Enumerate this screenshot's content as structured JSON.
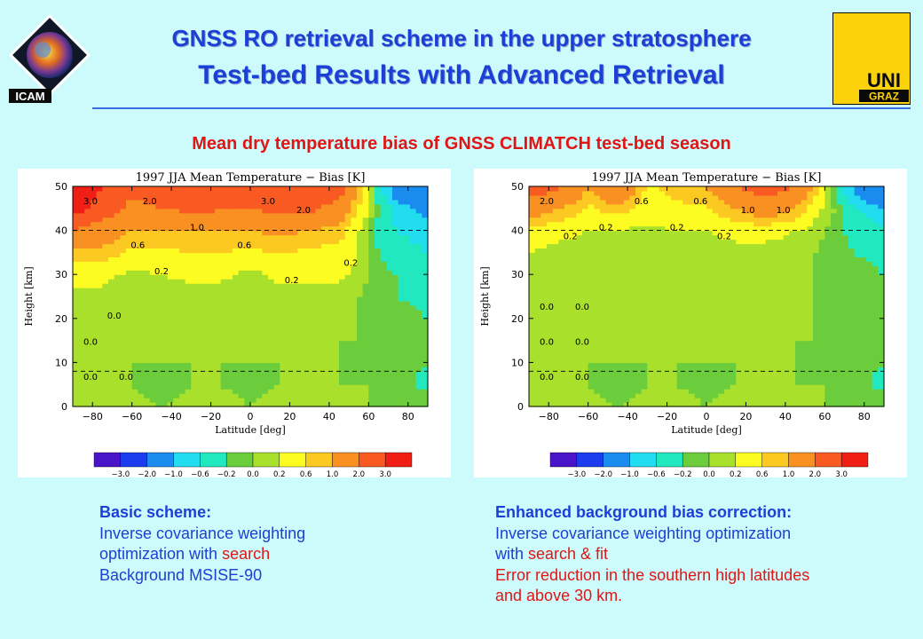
{
  "header": {
    "title_line1": "GNSS RO retrieval scheme in the upper stratosphere",
    "title_line2": "Test-bed Results with Advanced Retrieval",
    "logo_left_text": "ICAM",
    "logo_right_text_top": "UNI",
    "logo_right_text_bottom": "GRAZ"
  },
  "subtitle": "Mean dry temperature bias of GNSS CLIMATCH test-bed season",
  "chart_data": [
    {
      "type": "heatmap",
      "title": "1997 JJA Mean Temperature − Bias [K]",
      "xlabel": "Latitude [deg]",
      "ylabel": "Height [km]",
      "xlim": [
        -90,
        90
      ],
      "ylim": [
        0,
        50
      ],
      "xticks": [
        "−80",
        "−60",
        "−40",
        "−20",
        "0",
        "20",
        "40",
        "60",
        "80"
      ],
      "yticks": [
        "0",
        "10",
        "20",
        "30",
        "40",
        "50"
      ],
      "dashed_lines_km": [
        8,
        40
      ],
      "levels": [
        "−3.0",
        "−2.0",
        "−1.0",
        "−0.6",
        "−0.2",
        "0.0",
        "0.2",
        "0.6",
        "1.0",
        "2.0",
        "3.0"
      ],
      "colors": [
        "#4a14c8",
        "#1c3cf0",
        "#1a8cf0",
        "#22dcf0",
        "#22e8c0",
        "#6ccd3c",
        "#a8e02c",
        "#fcfc22",
        "#fcc822",
        "#f89022",
        "#f85a22",
        "#f01e14"
      ],
      "contour_labels": [
        "3.0",
        "2.0",
        "1.0",
        "0.6",
        "0.2",
        "0.0",
        "2.0",
        "3.0",
        "0.6",
        "0.2",
        "0.0",
        "0.0",
        "0.0",
        "0.2"
      ],
      "x": [
        -90,
        -75,
        -60,
        -45,
        -30,
        -15,
        0,
        15,
        30,
        45,
        55,
        65,
        75,
        90
      ],
      "y": [
        0,
        5,
        10,
        15,
        20,
        25,
        30,
        35,
        40,
        45,
        50
      ],
      "z": [
        [
          0.1,
          0.1,
          0.1,
          0.0,
          0.1,
          0.1,
          0.0,
          0.1,
          0.1,
          0.1,
          0.1,
          -0.1,
          0.0,
          0.0
        ],
        [
          0.0,
          0.0,
          0.0,
          -0.2,
          0.0,
          0.0,
          -0.1,
          0.0,
          0.0,
          0.0,
          0.0,
          0.0,
          -0.1,
          -0.3
        ],
        [
          0.0,
          0.0,
          0.0,
          0.0,
          0.0,
          0.0,
          0.0,
          0.0,
          0.0,
          0.0,
          -0.1,
          0.0,
          -0.1,
          -0.2
        ],
        [
          0.0,
          0.0,
          0.0,
          0.0,
          0.0,
          0.0,
          0.0,
          0.0,
          0.0,
          0.0,
          0.0,
          -0.1,
          -0.1,
          -0.2
        ],
        [
          0.0,
          0.0,
          0.0,
          0.0,
          0.0,
          0.0,
          0.0,
          0.0,
          0.0,
          0.0,
          0.0,
          0.0,
          -0.1,
          -0.2
        ],
        [
          0.1,
          0.1,
          0.0,
          0.1,
          0.0,
          0.0,
          0.0,
          0.1,
          0.0,
          0.0,
          0.0,
          -0.1,
          -0.2,
          -0.3
        ],
        [
          0.3,
          0.3,
          0.1,
          0.2,
          0.3,
          0.3,
          0.1,
          0.3,
          0.3,
          0.3,
          0.1,
          -0.1,
          -0.2,
          -0.3
        ],
        [
          0.8,
          0.8,
          0.5,
          0.5,
          0.6,
          0.6,
          0.5,
          0.6,
          0.5,
          0.4,
          0.2,
          -0.2,
          -0.4,
          -0.6
        ],
        [
          1.9,
          1.5,
          1.0,
          0.9,
          1.0,
          1.0,
          1.0,
          1.1,
          1.0,
          0.8,
          0.2,
          -0.3,
          -0.6,
          -0.8
        ],
        [
          3.5,
          2.5,
          1.8,
          2.0,
          2.2,
          2.1,
          2.0,
          2.3,
          2.2,
          1.5,
          0.6,
          -0.2,
          -0.8,
          -1.2
        ],
        [
          3.8,
          3.0,
          2.2,
          2.4,
          2.6,
          2.5,
          2.2,
          2.6,
          3.1,
          2.5,
          1.0,
          -0.5,
          -1.5,
          -2.0
        ]
      ]
    },
    {
      "type": "heatmap",
      "title": "1997 JJA Mean Temperature − Bias [K]",
      "xlabel": "Latitude [deg]",
      "ylabel": "Height [km]",
      "xlim": [
        -90,
        90
      ],
      "ylim": [
        0,
        50
      ],
      "xticks": [
        "−80",
        "−60",
        "−40",
        "−20",
        "0",
        "20",
        "40",
        "60",
        "80"
      ],
      "yticks": [
        "0",
        "10",
        "20",
        "30",
        "40",
        "50"
      ],
      "dashed_lines_km": [
        8,
        40
      ],
      "levels": [
        "−3.0",
        "−2.0",
        "−1.0",
        "−0.6",
        "−0.2",
        "0.0",
        "0.2",
        "0.6",
        "1.0",
        "2.0",
        "3.0"
      ],
      "colors": [
        "#4a14c8",
        "#1c3cf0",
        "#1a8cf0",
        "#22dcf0",
        "#22e8c0",
        "#6ccd3c",
        "#a8e02c",
        "#fcfc22",
        "#fcc822",
        "#f89022",
        "#f85a22",
        "#f01e14"
      ],
      "contour_labels": [
        "1.0",
        "0.6",
        "0.2",
        "0.2",
        "2.0",
        "1.0",
        "0.6",
        "0.2",
        "0.0",
        "0.0",
        "0.0",
        "0.2",
        "0.0",
        "0.0",
        "0.0"
      ],
      "x": [
        -90,
        -75,
        -60,
        -45,
        -30,
        -15,
        0,
        15,
        30,
        45,
        55,
        65,
        75,
        90
      ],
      "y": [
        0,
        5,
        10,
        15,
        20,
        25,
        30,
        35,
        40,
        45,
        50
      ],
      "z": [
        [
          0.1,
          0.1,
          0.1,
          0.0,
          0.1,
          0.1,
          0.0,
          0.1,
          0.1,
          0.1,
          0.1,
          -0.1,
          0.0,
          0.0
        ],
        [
          0.0,
          0.0,
          0.0,
          -0.2,
          0.0,
          0.0,
          -0.1,
          0.0,
          0.0,
          0.0,
          0.0,
          0.0,
          -0.1,
          -0.3
        ],
        [
          0.0,
          0.0,
          0.0,
          0.0,
          0.0,
          0.0,
          0.0,
          0.0,
          0.0,
          0.0,
          -0.1,
          0.0,
          -0.1,
          -0.2
        ],
        [
          0.0,
          0.0,
          0.0,
          0.0,
          0.0,
          0.0,
          0.0,
          0.0,
          0.0,
          0.0,
          0.0,
          -0.1,
          -0.1,
          -0.2
        ],
        [
          0.0,
          0.0,
          0.0,
          0.0,
          0.0,
          0.0,
          0.0,
          0.0,
          0.0,
          0.0,
          0.0,
          0.0,
          -0.1,
          -0.2
        ],
        [
          0.0,
          0.0,
          0.0,
          0.0,
          0.0,
          0.0,
          0.0,
          0.0,
          0.0,
          0.0,
          0.0,
          -0.1,
          -0.1,
          -0.2
        ],
        [
          0.1,
          0.1,
          0.0,
          0.1,
          0.1,
          0.1,
          0.0,
          0.1,
          0.1,
          0.1,
          0.0,
          -0.1,
          -0.1,
          -0.2
        ],
        [
          0.2,
          0.1,
          0.1,
          0.1,
          0.1,
          0.1,
          0.1,
          0.1,
          0.1,
          0.1,
          0.0,
          -0.1,
          -0.2,
          -0.3
        ],
        [
          0.5,
          0.3,
          0.2,
          0.2,
          0.1,
          0.2,
          0.2,
          0.3,
          0.3,
          0.2,
          0.1,
          -0.1,
          -0.3,
          -0.5
        ],
        [
          1.5,
          1.0,
          0.5,
          0.8,
          0.4,
          0.5,
          0.5,
          1.0,
          1.5,
          1.0,
          0.3,
          0.0,
          -0.5,
          -1.0
        ],
        [
          2.5,
          2.2,
          1.0,
          2.0,
          0.5,
          0.8,
          1.0,
          2.0,
          2.5,
          2.0,
          0.8,
          -0.2,
          -1.2,
          -2.0
        ]
      ]
    }
  ],
  "captions": {
    "left": {
      "heading": "Basic scheme:",
      "line1": "Inverse covariance weighting",
      "line2_a": "optimization with ",
      "line2_b": "search",
      "line3": "Background MSISE-90"
    },
    "right": {
      "heading": "Enhanced background bias correction:",
      "line1": "Inverse covariance weighting optimization",
      "line2_a": "with ",
      "line2_b": "search & fit",
      "line3": "Error reduction in the southern high latitudes",
      "line4": "and above 30 km."
    }
  }
}
